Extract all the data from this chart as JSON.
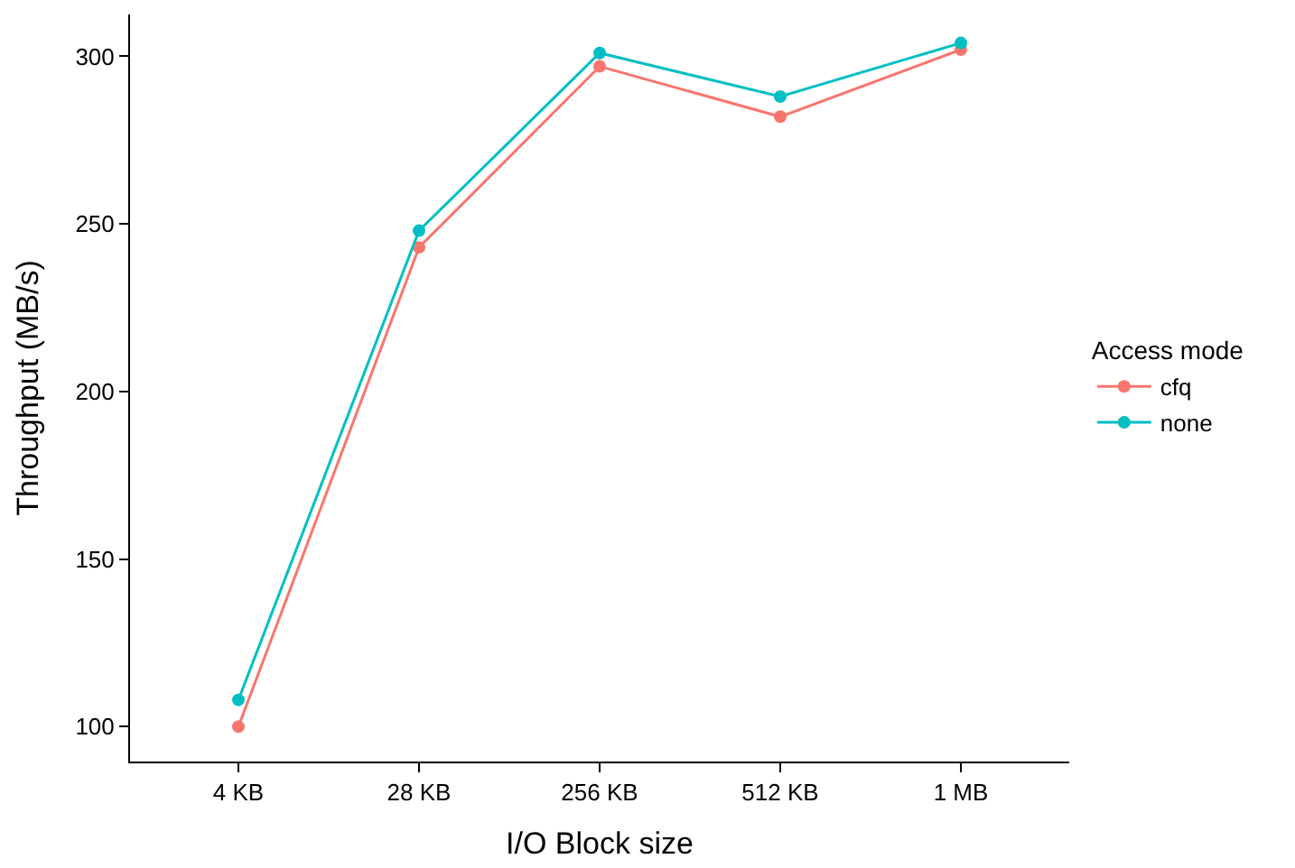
{
  "chart_data": {
    "type": "line",
    "xlabel": "I/O Block size",
    "ylabel": "Throughput (MB/s)",
    "legend_title": "Access mode",
    "categories": [
      "4 KB",
      "28 KB",
      "256 KB",
      "512 KB",
      "1 MB"
    ],
    "series": [
      {
        "name": "cfq",
        "color": "#f8766d",
        "values": [
          100,
          243,
          297,
          282,
          302
        ]
      },
      {
        "name": "none",
        "color": "#00bfc4",
        "values": [
          108,
          248,
          301,
          288,
          304
        ]
      }
    ],
    "ylim": [
      89.6,
      312.5
    ],
    "yticks": [
      100,
      150,
      200,
      250,
      300
    ],
    "legend": "right",
    "marker": "circle",
    "line_style": "solid"
  }
}
